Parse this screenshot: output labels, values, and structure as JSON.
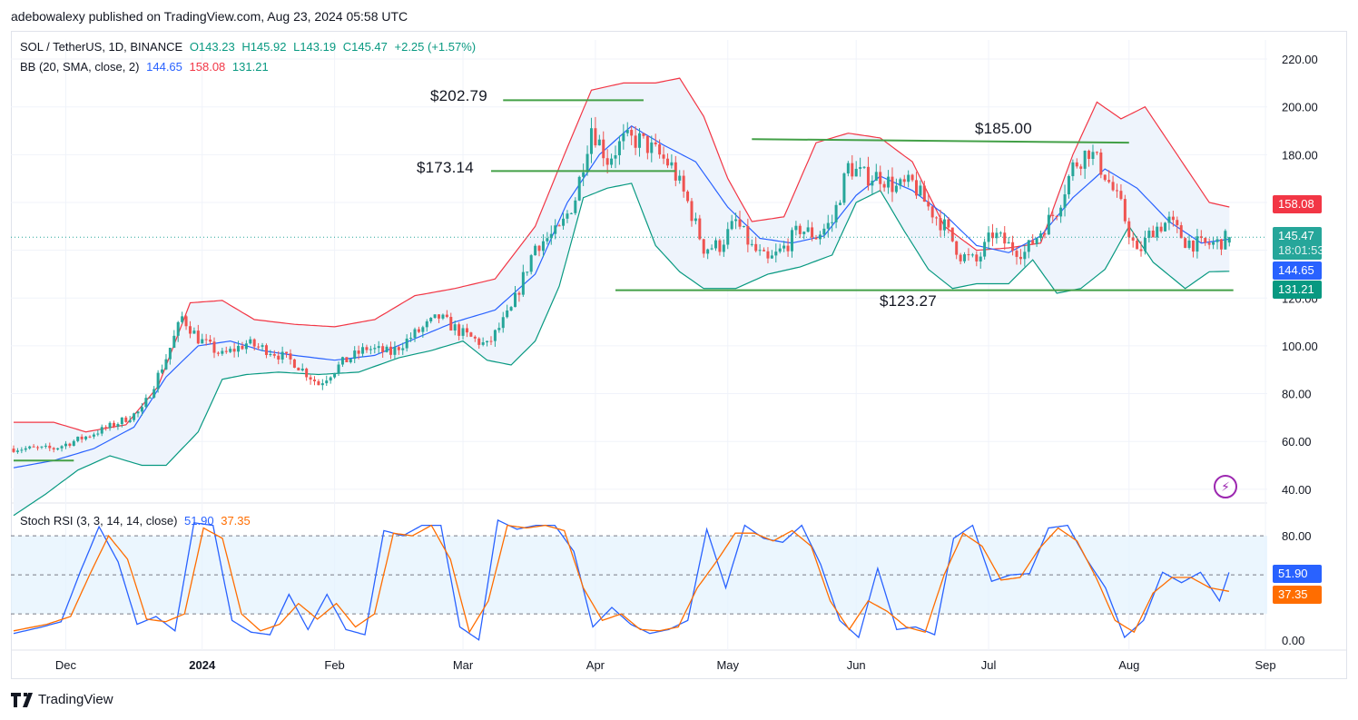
{
  "header": {
    "publisher_line": "adebowalexy published on TradingView.com, Aug 23, 2024 05:58 UTC"
  },
  "legend": {
    "symbol": "SOL / TetherUS, 1D, BINANCE",
    "open": "O143.23",
    "high": "H145.92",
    "low": "L143.19",
    "close": "C145.47",
    "change": "+2.25 (+1.57%)",
    "bb_label": "BB (20, SMA, close, 2)",
    "bb_basis": "144.65",
    "bb_upper": "158.08",
    "bb_lower": "131.21",
    "stoch_label": "Stoch RSI (3, 3, 14, 14, close)",
    "stoch_k": "51.90",
    "stoch_d": "37.35"
  },
  "annotations": {
    "r1": "$202.79",
    "r2": "$173.14",
    "r3": "$185.00",
    "s1": "$123.27"
  },
  "price_tags": {
    "upper": "158.08",
    "last": "145.47",
    "countdown": "18:01:53",
    "basis": "144.65",
    "lower": "131.21"
  },
  "footer": {
    "brand": "TradingView"
  },
  "colors": {
    "up": "#26a69a",
    "down": "#ef5350",
    "bb_upper": "#f23645",
    "bb_basis": "#2962ff",
    "bb_lower": "#089981",
    "bb_fill": "#eef4fc",
    "stoch_k": "#2962ff",
    "stoch_d": "#ff6d00",
    "hline": "#43a047"
  },
  "chart_data": [
    {
      "type": "candlestick",
      "title": "SOL / TetherUS, 1D, BINANCE",
      "x_ticks": [
        "Dec",
        "2024",
        "Feb",
        "Mar",
        "Apr",
        "May",
        "Jun",
        "Jul",
        "Aug",
        "Sep"
      ],
      "y_ticks": [
        "40.00",
        "60.00",
        "80.00",
        "100.00",
        "120.00",
        "140.00",
        "160.00",
        "180.00",
        "200.00",
        "220.00"
      ],
      "ylim": [
        35,
        228
      ],
      "key_levels": [
        202.79,
        173.14,
        185.0,
        123.27,
        52
      ],
      "close_anchors": [
        [
          0,
          57
        ],
        [
          10,
          57
        ],
        [
          18,
          62
        ],
        [
          25,
          67
        ],
        [
          32,
          73
        ],
        [
          38,
          95
        ],
        [
          42,
          112
        ],
        [
          46,
          103
        ],
        [
          52,
          96
        ],
        [
          58,
          101
        ],
        [
          64,
          98
        ],
        [
          70,
          93
        ],
        [
          76,
          84
        ],
        [
          82,
          93
        ],
        [
          88,
          99
        ],
        [
          94,
          97
        ],
        [
          100,
          105
        ],
        [
          106,
          112
        ],
        [
          112,
          105
        ],
        [
          118,
          100
        ],
        [
          124,
          115
        ],
        [
          130,
          142
        ],
        [
          136,
          148
        ],
        [
          140,
          162
        ],
        [
          144,
          192
        ],
        [
          148,
          178
        ],
        [
          152,
          186
        ],
        [
          156,
          186
        ],
        [
          160,
          181
        ],
        [
          164,
          175
        ],
        [
          168,
          160
        ],
        [
          172,
          141
        ],
        [
          176,
          142
        ],
        [
          180,
          152
        ],
        [
          184,
          141
        ],
        [
          188,
          135
        ],
        [
          192,
          141
        ],
        [
          196,
          149
        ],
        [
          200,
          146
        ],
        [
          204,
          152
        ],
        [
          208,
          175
        ],
        [
          212,
          171
        ],
        [
          216,
          171
        ],
        [
          220,
          166
        ],
        [
          224,
          168
        ],
        [
          228,
          158
        ],
        [
          232,
          150
        ],
        [
          236,
          138
        ],
        [
          240,
          135
        ],
        [
          244,
          147
        ],
        [
          248,
          142
        ],
        [
          252,
          139
        ],
        [
          256,
          148
        ],
        [
          260,
          157
        ],
        [
          264,
          175
        ],
        [
          268,
          182
        ],
        [
          272,
          172
        ],
        [
          276,
          158
        ],
        [
          280,
          138
        ],
        [
          284,
          149
        ],
        [
          288,
          152
        ],
        [
          292,
          144
        ],
        [
          296,
          142
        ],
        [
          300,
          143
        ],
        [
          303,
          145.47
        ]
      ],
      "bb_upper_anchors": [
        [
          0,
          68
        ],
        [
          10,
          68
        ],
        [
          18,
          64
        ],
        [
          28,
          67
        ],
        [
          36,
          83
        ],
        [
          44,
          118
        ],
        [
          52,
          119
        ],
        [
          60,
          111
        ],
        [
          70,
          109
        ],
        [
          80,
          108
        ],
        [
          90,
          111
        ],
        [
          100,
          121
        ],
        [
          110,
          124
        ],
        [
          120,
          128
        ],
        [
          130,
          150
        ],
        [
          138,
          183
        ],
        [
          144,
          207
        ],
        [
          152,
          210
        ],
        [
          160,
          210
        ],
        [
          166,
          212
        ],
        [
          172,
          196
        ],
        [
          178,
          170
        ],
        [
          184,
          152
        ],
        [
          192,
          154
        ],
        [
          200,
          185
        ],
        [
          208,
          189
        ],
        [
          216,
          187
        ],
        [
          224,
          177
        ],
        [
          232,
          150
        ],
        [
          240,
          140
        ],
        [
          248,
          141
        ],
        [
          256,
          143
        ],
        [
          264,
          180
        ],
        [
          270,
          202
        ],
        [
          276,
          195
        ],
        [
          282,
          200
        ],
        [
          290,
          180
        ],
        [
          298,
          160
        ],
        [
          303,
          158.08
        ]
      ],
      "bb_basis_anchors": [
        [
          0,
          49
        ],
        [
          10,
          52
        ],
        [
          20,
          57
        ],
        [
          30,
          66
        ],
        [
          38,
          87
        ],
        [
          46,
          100
        ],
        [
          54,
          102
        ],
        [
          62,
          98
        ],
        [
          70,
          96
        ],
        [
          80,
          94
        ],
        [
          90,
          96
        ],
        [
          100,
          103
        ],
        [
          110,
          110
        ],
        [
          120,
          115
        ],
        [
          130,
          130
        ],
        [
          138,
          160
        ],
        [
          146,
          180
        ],
        [
          154,
          192
        ],
        [
          162,
          184
        ],
        [
          170,
          177
        ],
        [
          178,
          158
        ],
        [
          186,
          145
        ],
        [
          194,
          143
        ],
        [
          202,
          146
        ],
        [
          210,
          163
        ],
        [
          216,
          171
        ],
        [
          224,
          165
        ],
        [
          232,
          155
        ],
        [
          240,
          142
        ],
        [
          248,
          139
        ],
        [
          256,
          146
        ],
        [
          264,
          162
        ],
        [
          272,
          174
        ],
        [
          280,
          166
        ],
        [
          288,
          152
        ],
        [
          296,
          143
        ],
        [
          303,
          144.65
        ]
      ],
      "bb_lower_anchors": [
        [
          0,
          29
        ],
        [
          8,
          38
        ],
        [
          16,
          48
        ],
        [
          24,
          54
        ],
        [
          32,
          50
        ],
        [
          38,
          50
        ],
        [
          46,
          64
        ],
        [
          52,
          86
        ],
        [
          58,
          88
        ],
        [
          66,
          89
        ],
        [
          76,
          88
        ],
        [
          86,
          89
        ],
        [
          96,
          95
        ],
        [
          104,
          98
        ],
        [
          112,
          102
        ],
        [
          118,
          94
        ],
        [
          124,
          92
        ],
        [
          130,
          102
        ],
        [
          136,
          125
        ],
        [
          142,
          162
        ],
        [
          148,
          166
        ],
        [
          154,
          168
        ],
        [
          160,
          142
        ],
        [
          166,
          131
        ],
        [
          172,
          124
        ],
        [
          180,
          124
        ],
        [
          188,
          130
        ],
        [
          196,
          133
        ],
        [
          204,
          138
        ],
        [
          210,
          160
        ],
        [
          216,
          165
        ],
        [
          222,
          148
        ],
        [
          228,
          132
        ],
        [
          234,
          124
        ],
        [
          240,
          126
        ],
        [
          248,
          126
        ],
        [
          254,
          136
        ],
        [
          260,
          122
        ],
        [
          266,
          124
        ],
        [
          272,
          132
        ],
        [
          278,
          150
        ],
        [
          284,
          135
        ],
        [
          292,
          124
        ],
        [
          298,
          131
        ],
        [
          303,
          131.21
        ]
      ]
    },
    {
      "type": "line",
      "title": "Stoch RSI (3, 3, 14, 14, close)",
      "y_ticks": [
        "0.00",
        "80.00"
      ],
      "ylim": [
        -5,
        101
      ],
      "bands": [
        80,
        50,
        20
      ],
      "series": [
        {
          "name": "K",
          "anchors": [
            [
              0,
              5
            ],
            [
              6,
              10
            ],
            [
              10,
              14
            ],
            [
              14,
              52
            ],
            [
              18,
              87
            ],
            [
              22,
              60
            ],
            [
              26,
              12
            ],
            [
              30,
              18
            ],
            [
              34,
              7
            ],
            [
              38,
              90
            ],
            [
              42,
              88
            ],
            [
              46,
              15
            ],
            [
              50,
              6
            ],
            [
              54,
              4
            ],
            [
              58,
              35
            ],
            [
              62,
              8
            ],
            [
              66,
              35
            ],
            [
              70,
              8
            ],
            [
              74,
              4
            ],
            [
              78,
              84
            ],
            [
              82,
              80
            ],
            [
              86,
              88
            ],
            [
              90,
              88
            ],
            [
              94,
              10
            ],
            [
              98,
              0
            ],
            [
              102,
              92
            ],
            [
              106,
              85
            ],
            [
              110,
              88
            ],
            [
              114,
              88
            ],
            [
              118,
              68
            ],
            [
              122,
              10
            ],
            [
              126,
              25
            ],
            [
              130,
              12
            ],
            [
              134,
              5
            ],
            [
              138,
              8
            ],
            [
              142,
              15
            ],
            [
              146,
              85
            ],
            [
              150,
              40
            ],
            [
              154,
              88
            ],
            [
              158,
              78
            ],
            [
              162,
              75
            ],
            [
              166,
              88
            ],
            [
              170,
              58
            ],
            [
              174,
              15
            ],
            [
              178,
              2
            ],
            [
              182,
              55
            ],
            [
              186,
              8
            ],
            [
              190,
              10
            ],
            [
              194,
              4
            ],
            [
              198,
              78
            ],
            [
              202,
              88
            ],
            [
              206,
              45
            ],
            [
              210,
              50
            ],
            [
              214,
              51
            ],
            [
              218,
              86
            ],
            [
              222,
              88
            ],
            [
              226,
              62
            ],
            [
              230,
              40
            ],
            [
              234,
              2
            ],
            [
              238,
              15
            ],
            [
              242,
              52
            ],
            [
              246,
              44
            ],
            [
              250,
              52
            ],
            [
              254,
              30
            ],
            [
              256,
              51.9
            ]
          ]
        },
        {
          "name": "D",
          "anchors": [
            [
              0,
              7
            ],
            [
              7,
              12
            ],
            [
              12,
              18
            ],
            [
              16,
              50
            ],
            [
              20,
              80
            ],
            [
              24,
              62
            ],
            [
              28,
              16
            ],
            [
              32,
              14
            ],
            [
              36,
              20
            ],
            [
              40,
              86
            ],
            [
              44,
              78
            ],
            [
              48,
              20
            ],
            [
              52,
              7
            ],
            [
              56,
              12
            ],
            [
              60,
              28
            ],
            [
              64,
              16
            ],
            [
              68,
              28
            ],
            [
              72,
              10
            ],
            [
              76,
              20
            ],
            [
              80,
              82
            ],
            [
              84,
              80
            ],
            [
              88,
              88
            ],
            [
              92,
              62
            ],
            [
              96,
              6
            ],
            [
              100,
              30
            ],
            [
              104,
              88
            ],
            [
              108,
              86
            ],
            [
              112,
              88
            ],
            [
              116,
              84
            ],
            [
              120,
              40
            ],
            [
              124,
              15
            ],
            [
              128,
              20
            ],
            [
              132,
              8
            ],
            [
              136,
              7
            ],
            [
              140,
              10
            ],
            [
              144,
              40
            ],
            [
              148,
              60
            ],
            [
              152,
              82
            ],
            [
              156,
              82
            ],
            [
              160,
              76
            ],
            [
              164,
              84
            ],
            [
              168,
              72
            ],
            [
              172,
              30
            ],
            [
              176,
              8
            ],
            [
              180,
              30
            ],
            [
              184,
              22
            ],
            [
              188,
              10
            ],
            [
              192,
              6
            ],
            [
              196,
              50
            ],
            [
              200,
              82
            ],
            [
              204,
              72
            ],
            [
              208,
              46
            ],
            [
              212,
              48
            ],
            [
              216,
              70
            ],
            [
              220,
              86
            ],
            [
              224,
              76
            ],
            [
              228,
              48
            ],
            [
              232,
              15
            ],
            [
              236,
              6
            ],
            [
              240,
              36
            ],
            [
              244,
              48
            ],
            [
              248,
              48
            ],
            [
              252,
              40
            ],
            [
              256,
              37.35
            ]
          ]
        }
      ]
    }
  ]
}
